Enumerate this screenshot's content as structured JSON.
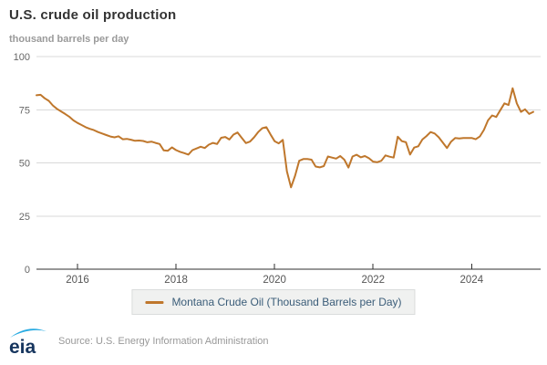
{
  "header": {
    "title": "U.S. crude oil production",
    "subtitle": "thousand barrels per day"
  },
  "legend": {
    "label": "Montana Crude Oil (Thousand Barrels per Day)"
  },
  "footer": {
    "logo_text": "eia",
    "source": "Source: U.S. Energy Information Administration",
    "logo_navy": "#16355e",
    "logo_swoosh": "#29abe2"
  },
  "chart_data": {
    "type": "line",
    "title": "U.S. crude oil production",
    "ylabel": "thousand barrels per day",
    "xlabel": "",
    "x_ticks": [
      2016,
      2018,
      2020,
      2022,
      2024
    ],
    "y_ticks": [
      0,
      25,
      50,
      75,
      100
    ],
    "ylim": [
      0,
      100
    ],
    "grid": true,
    "legend_position": "bottom",
    "series": [
      {
        "name": "Montana Crude Oil (Thousand Barrels per Day)",
        "color": "#bf772c",
        "frequency": "monthly",
        "start": "2015-03",
        "end": "2025-04",
        "values": [
          81.8,
          82.0,
          80.4,
          79.2,
          77.0,
          75.4,
          74.2,
          73.0,
          71.7,
          70.0,
          68.8,
          67.8,
          66.8,
          66.0,
          65.4,
          64.5,
          63.8,
          63.1,
          62.4,
          62.0,
          62.5,
          61.1,
          61.3,
          60.9,
          60.4,
          60.5,
          60.3,
          59.7,
          60.0,
          59.4,
          58.9,
          55.9,
          55.7,
          57.3,
          56.0,
          55.2,
          54.6,
          53.9,
          56.0,
          56.8,
          57.6,
          57.0,
          58.6,
          59.4,
          58.9,
          61.8,
          62.2,
          61.0,
          63.3,
          64.3,
          61.8,
          59.3,
          60.0,
          62.0,
          64.5,
          66.3,
          66.8,
          63.4,
          60.2,
          59.2,
          60.8,
          46.0,
          38.5,
          44.0,
          51.0,
          51.8,
          51.8,
          51.5,
          48.3,
          47.9,
          48.5,
          53.0,
          52.5,
          52.0,
          53.2,
          51.5,
          47.8,
          53.0,
          53.8,
          52.6,
          53.2,
          52.2,
          50.6,
          50.3,
          51.0,
          53.5,
          52.9,
          52.5,
          62.3,
          60.2,
          59.7,
          53.9,
          57.2,
          57.8,
          61.0,
          62.6,
          64.5,
          63.8,
          62.0,
          59.5,
          57.0,
          60.0,
          61.7,
          61.5,
          61.7,
          61.7,
          61.7,
          61.1,
          62.4,
          65.5,
          70.0,
          72.3,
          71.6,
          74.8,
          78.0,
          77.2,
          85.1,
          78.0,
          74.0,
          75.2,
          73.0,
          74.0
        ]
      }
    ]
  }
}
